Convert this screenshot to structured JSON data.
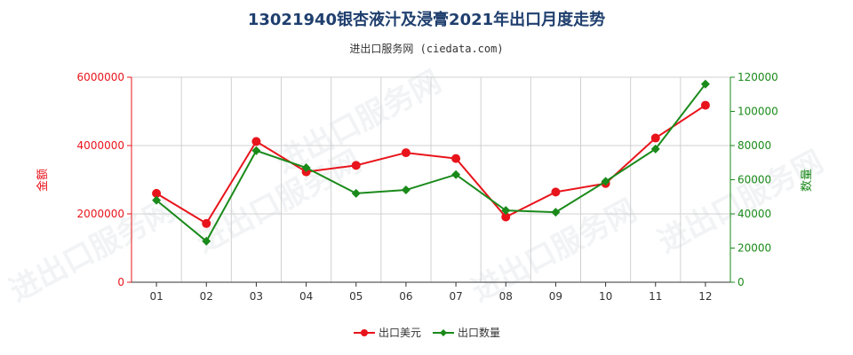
{
  "title": "13021940银杏液汁及浸膏2021年出口月度走势",
  "subtitle": "进出口服务网 (ciedata.com)",
  "watermark": "进出口服务网",
  "chart_data": {
    "type": "line",
    "categories": [
      "01",
      "02",
      "03",
      "04",
      "05",
      "06",
      "07",
      "08",
      "09",
      "10",
      "11",
      "12"
    ],
    "y_left": {
      "label": "金额",
      "ticks": [
        "0",
        "2000000",
        "4000000",
        "6000000"
      ],
      "range": [
        0,
        6000000
      ]
    },
    "y_right": {
      "label": "数量",
      "ticks": [
        "0",
        "20000",
        "40000",
        "60000",
        "80000",
        "100000",
        "120000"
      ],
      "range": [
        0,
        120000
      ]
    },
    "series": [
      {
        "name": "出口美元",
        "axis": "left",
        "color": "#e8141b",
        "values": [
          2600000,
          1720000,
          4120000,
          3230000,
          3420000,
          3790000,
          3620000,
          1910000,
          2640000,
          2890000,
          4220000,
          5180000
        ]
      },
      {
        "name": "出口数量",
        "axis": "right",
        "color": "#1a8a1a",
        "values": [
          48000,
          24000,
          77000,
          67000,
          52000,
          54000,
          63000,
          42000,
          41000,
          59000,
          78000,
          116000
        ]
      }
    ],
    "grid": true,
    "legend_position": "bottom"
  }
}
